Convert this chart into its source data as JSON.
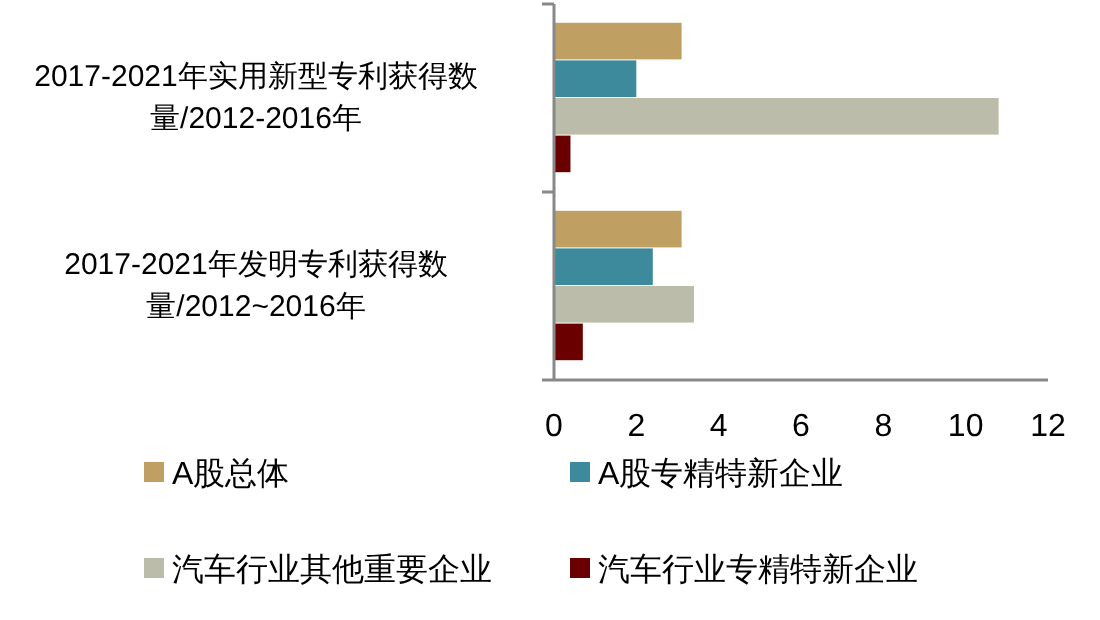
{
  "chart_data": {
    "type": "bar",
    "orientation": "horizontal",
    "categories": [
      "2017-2021年实用新型专利获得数量/2012-2016年",
      "2017-2021年发明专利获得数量/2012~2016年"
    ],
    "series": [
      {
        "name": "A股总体",
        "color": "#c0a062",
        "values": [
          3.1,
          3.1
        ]
      },
      {
        "name": "A股专精特新企业",
        "color": "#3d8a9c",
        "values": [
          2.0,
          2.4
        ]
      },
      {
        "name": "汽车行业其他重要企业",
        "color": "#bcbcaa",
        "values": [
          10.8,
          3.4
        ]
      },
      {
        "name": "汽车行业专精特新企业",
        "color": "#6b0000",
        "values": [
          0.4,
          0.7
        ]
      }
    ],
    "xlim": [
      0,
      12
    ],
    "xticks": [
      0,
      2,
      4,
      6,
      8,
      10,
      12
    ],
    "grid": false,
    "legend": "bottom"
  }
}
